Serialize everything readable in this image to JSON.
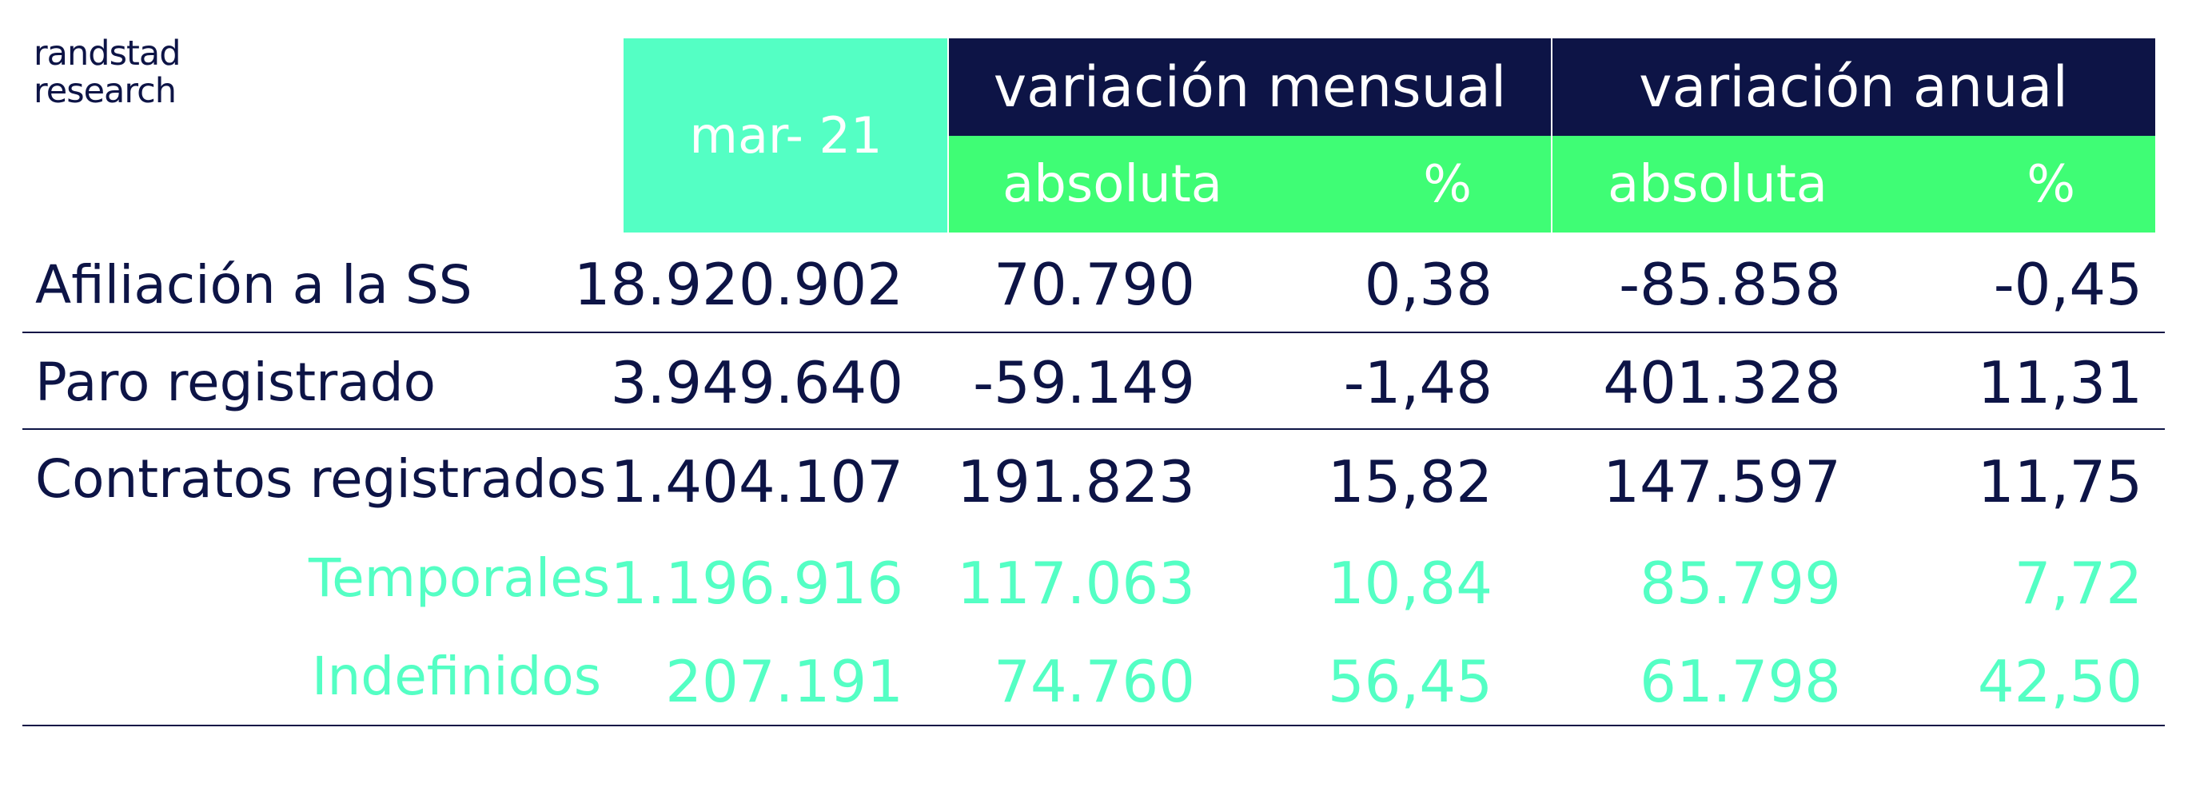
{
  "brand": {
    "line1": "randstad",
    "line2": "research"
  },
  "colors": {
    "navy": "#0d1446",
    "mint": "#54ffc4",
    "green": "#3ffd75",
    "white": "#ffffff"
  },
  "header": {
    "date": "mar- 21",
    "monthly": {
      "title": "variación mensual",
      "absolute": "absoluta",
      "percent": "%"
    },
    "annual": {
      "title": "variación anual",
      "absolute": "absoluta",
      "percent": "%"
    }
  },
  "rows": [
    {
      "label": "Afiliación a la SS",
      "value": "18.920.902",
      "m_abs": "70.790",
      "m_pct": "0,38",
      "a_abs": "-85.858",
      "a_pct": "-0,45"
    },
    {
      "label": "Paro registrado",
      "value": "3.949.640",
      "m_abs": "-59.149",
      "m_pct": "-1,48",
      "a_abs": "401.328",
      "a_pct": "11,31"
    },
    {
      "label": "Contratos registrados",
      "value": "1.404.107",
      "m_abs": "191.823",
      "m_pct": "15,82",
      "a_abs": "147.597",
      "a_pct": "11,75"
    },
    {
      "label": "Temporales",
      "value": "1.196.916",
      "m_abs": "117.063",
      "m_pct": "10,84",
      "a_abs": "85.799",
      "a_pct": "7,72"
    },
    {
      "label": "Indefinidos",
      "value": "207.191",
      "m_abs": "74.760",
      "m_pct": "56,45",
      "a_abs": "61.798",
      "a_pct": "42,50"
    }
  ]
}
